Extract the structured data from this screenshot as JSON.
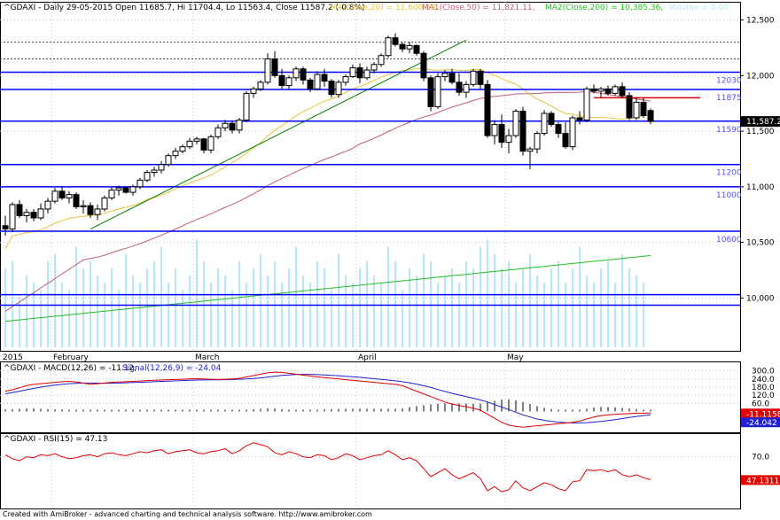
{
  "chart_data": {
    "type": "candlestick",
    "symbol": "^GDAXI",
    "header": {
      "title": "^GDAXI - Daily 29-05-2015 Open 11685.7, Hi 11704.4, Lo 11563.4, Close 11587.2 (-0.8%)",
      "ma20": "MA(Close,20) = 11,600.53,",
      "ma50": "MA1(Close,50) = 11,821.11,",
      "ma200": "MA2(Close,200) = 10,385.36,",
      "volume": "Volume = 0.00"
    },
    "colors": {
      "grid": "#c0c0c0",
      "level_line": "#0000ff",
      "level_label": "#5050ff",
      "ma20": "#e6c53a",
      "ma50": "#c06070",
      "ma200": "#22c022",
      "trendline": "#008000",
      "resistance": "#e00000",
      "volume": "#b5e8f8",
      "macd": "#e00000",
      "signal": "#2020d0",
      "rsi": "#e00000"
    },
    "price_axis": {
      "ylim": [
        9700,
        12600
      ],
      "ticks": [
        {
          "value": 12500,
          "label": "12,500"
        },
        {
          "value": 12000,
          "label": "12,000"
        },
        {
          "value": 11500,
          "label": "11,500"
        },
        {
          "value": 11000,
          "label": "11,000"
        },
        {
          "value": 10500,
          "label": "10,500"
        },
        {
          "value": 10000,
          "label": "10,000"
        }
      ],
      "current_price_label": "11,587.2"
    },
    "levels": [
      {
        "value": 12030,
        "label": "12030"
      },
      {
        "value": 11875,
        "label": "11875"
      },
      {
        "value": 11590,
        "label": "11590"
      },
      {
        "value": 11200,
        "label": "11200"
      },
      {
        "value": 11000,
        "label": "11000"
      },
      {
        "value": 10600,
        "label": "10600"
      },
      {
        "value": 10030,
        "label": ""
      },
      {
        "value": 9935,
        "label": ""
      }
    ],
    "dotted_levels": [
      12300,
      12150
    ],
    "resistance_segment": {
      "from_bar": 83,
      "to_bar": 98,
      "value": 11800
    },
    "trendline": {
      "from_bar": 12,
      "from_value": 10620,
      "to_bar": 65,
      "to_value": 12320
    },
    "month_labels": [
      {
        "bar": 0,
        "label": "2015"
      },
      {
        "bar": 7,
        "label": "February"
      },
      {
        "bar": 27,
        "label": "March"
      },
      {
        "bar": 50,
        "label": "April"
      },
      {
        "bar": 71,
        "label": "May"
      }
    ],
    "ohlc": [
      [
        10650,
        10740,
        10560,
        10620
      ],
      [
        10620,
        10860,
        10590,
        10840
      ],
      [
        10840,
        10880,
        10720,
        10740
      ],
      [
        10740,
        10800,
        10680,
        10770
      ],
      [
        10770,
        10800,
        10690,
        10720
      ],
      [
        10720,
        10850,
        10700,
        10800
      ],
      [
        10800,
        10900,
        10760,
        10870
      ],
      [
        10870,
        10990,
        10850,
        10960
      ],
      [
        10960,
        11000,
        10880,
        10900
      ],
      [
        10900,
        10960,
        10850,
        10930
      ],
      [
        10930,
        10950,
        10800,
        10820
      ],
      [
        10820,
        10880,
        10760,
        10830
      ],
      [
        10830,
        10860,
        10720,
        10750
      ],
      [
        10750,
        10840,
        10700,
        10800
      ],
      [
        10800,
        10920,
        10780,
        10900
      ],
      [
        10900,
        11000,
        10880,
        10970
      ],
      [
        10970,
        11010,
        10920,
        10990
      ],
      [
        10990,
        11000,
        10940,
        10950
      ],
      [
        10950,
        11020,
        10920,
        11000
      ],
      [
        11000,
        11080,
        10980,
        11060
      ],
      [
        11060,
        11150,
        11040,
        11130
      ],
      [
        11130,
        11180,
        11090,
        11150
      ],
      [
        11150,
        11230,
        11120,
        11200
      ],
      [
        11200,
        11300,
        11180,
        11280
      ],
      [
        11280,
        11350,
        11250,
        11320
      ],
      [
        11320,
        11380,
        11300,
        11360
      ],
      [
        11360,
        11440,
        11340,
        11410
      ],
      [
        11410,
        11450,
        11380,
        11430
      ],
      [
        11430,
        11440,
        11300,
        11330
      ],
      [
        11330,
        11470,
        11300,
        11450
      ],
      [
        11450,
        11560,
        11430,
        11530
      ],
      [
        11530,
        11600,
        11500,
        11570
      ],
      [
        11570,
        11590,
        11480,
        11510
      ],
      [
        11510,
        11620,
        11480,
        11600
      ],
      [
        11600,
        11860,
        11580,
        11840
      ],
      [
        11840,
        11900,
        11800,
        11880
      ],
      [
        11880,
        11960,
        11860,
        11940
      ],
      [
        11940,
        12200,
        11920,
        12150
      ],
      [
        12150,
        12220,
        11980,
        12000
      ],
      [
        12000,
        12060,
        11880,
        11910
      ],
      [
        11910,
        12000,
        11880,
        11980
      ],
      [
        11980,
        12080,
        11950,
        12060
      ],
      [
        12060,
        12080,
        11920,
        11960
      ],
      [
        11960,
        11980,
        11850,
        11880
      ],
      [
        11880,
        12040,
        11870,
        12010
      ],
      [
        12010,
        12060,
        11900,
        11950
      ],
      [
        11950,
        11970,
        11800,
        11830
      ],
      [
        11830,
        11960,
        11800,
        11940
      ],
      [
        11940,
        12010,
        11910,
        11990
      ],
      [
        11990,
        12100,
        11980,
        12070
      ],
      [
        12070,
        12110,
        11930,
        11980
      ],
      [
        11980,
        12080,
        11960,
        12050
      ],
      [
        12050,
        12120,
        12020,
        12100
      ],
      [
        12100,
        12200,
        12080,
        12180
      ],
      [
        12180,
        12360,
        12160,
        12340
      ],
      [
        12340,
        12380,
        12260,
        12280
      ],
      [
        12280,
        12300,
        12210,
        12240
      ],
      [
        12240,
        12300,
        12200,
        12270
      ],
      [
        12270,
        12280,
        12180,
        12200
      ],
      [
        12200,
        12220,
        11950,
        11980
      ],
      [
        11980,
        12000,
        11680,
        11720
      ],
      [
        11720,
        12020,
        11700,
        11990
      ],
      [
        11990,
        12050,
        11950,
        12020
      ],
      [
        12020,
        12060,
        11920,
        11940
      ],
      [
        11940,
        12020,
        11820,
        11850
      ],
      [
        11850,
        11950,
        11800,
        11920
      ],
      [
        11920,
        12060,
        11900,
        12040
      ],
      [
        12040,
        12060,
        11880,
        11920
      ],
      [
        11920,
        11960,
        11440,
        11460
      ],
      [
        11460,
        11600,
        11380,
        11560
      ],
      [
        11560,
        11650,
        11350,
        11400
      ],
      [
        11400,
        11520,
        11300,
        11460
      ],
      [
        11460,
        11700,
        11440,
        11680
      ],
      [
        11680,
        11720,
        11280,
        11320
      ],
      [
        11320,
        11360,
        11160,
        11340
      ],
      [
        11340,
        11500,
        11300,
        11480
      ],
      [
        11480,
        11690,
        11460,
        11660
      ],
      [
        11660,
        11680,
        11540,
        11560
      ],
      [
        11560,
        11580,
        11440,
        11480
      ],
      [
        11480,
        11580,
        11340,
        11360
      ],
      [
        11360,
        11640,
        11330,
        11620
      ],
      [
        11620,
        11680,
        11560,
        11600
      ],
      [
        11600,
        11900,
        11580,
        11880
      ],
      [
        11880,
        11920,
        11840,
        11860
      ],
      [
        11860,
        11900,
        11800,
        11880
      ],
      [
        11880,
        11910,
        11820,
        11840
      ],
      [
        11840,
        11920,
        11820,
        11900
      ],
      [
        11900,
        11940,
        11800,
        11820
      ],
      [
        11820,
        11850,
        11600,
        11620
      ],
      [
        11620,
        11800,
        11600,
        11760
      ],
      [
        11760,
        11800,
        11620,
        11640
      ],
      [
        11685.7,
        11704.4,
        11563.4,
        11587.2
      ]
    ],
    "volume_axis_max": 100,
    "volume": [
      55,
      60,
      35,
      50,
      45,
      40,
      60,
      65,
      45,
      40,
      70,
      55,
      60,
      50,
      45,
      55,
      40,
      65,
      50,
      45,
      55,
      60,
      70,
      45,
      55,
      40,
      50,
      75,
      60,
      45,
      55,
      50,
      40,
      60,
      45,
      55,
      65,
      50,
      60,
      45,
      55,
      70,
      50,
      45,
      60,
      55,
      40,
      65,
      50,
      45,
      55,
      60,
      50,
      45,
      70,
      60,
      40,
      55,
      50,
      65,
      60,
      45,
      50,
      55,
      45,
      60,
      55,
      70,
      75,
      65,
      55,
      60,
      45,
      55,
      65,
      50,
      45,
      55,
      60,
      45,
      55,
      70,
      50,
      45,
      55,
      60,
      45,
      65,
      55,
      50,
      45,
      0
    ],
    "macd": {
      "label": "^GDAXI - MACD(12,26) = -11.12,",
      "signal_label": "Signal(12,26,9) = -24.04",
      "ylim": [
        -140,
        330
      ],
      "ticks": [
        {
          "value": 300,
          "label": "300.0"
        },
        {
          "value": 240,
          "label": "240.0"
        },
        {
          "value": 180,
          "label": "180.0"
        },
        {
          "value": 120,
          "label": "120.0"
        },
        {
          "value": 60,
          "label": "60.0"
        }
      ],
      "macd_value_label": "-11.1158",
      "signal_value_label": "-24.042",
      "macd_values": [
        150,
        160,
        175,
        190,
        200,
        205,
        210,
        215,
        220,
        222,
        218,
        210,
        200,
        205,
        210,
        215,
        218,
        220,
        222,
        225,
        228,
        230,
        232,
        235,
        236,
        238,
        240,
        242,
        240,
        238,
        236,
        238,
        240,
        245,
        255,
        265,
        275,
        285,
        290,
        288,
        282,
        275,
        268,
        262,
        255,
        250,
        245,
        240,
        235,
        230,
        225,
        220,
        215,
        210,
        205,
        200,
        190,
        170,
        150,
        130,
        110,
        90,
        70,
        55,
        45,
        35,
        25,
        10,
        -20,
        -50,
        -80,
        -100,
        -110,
        -115,
        -110,
        -105,
        -100,
        -95,
        -90,
        -85,
        -80,
        -70,
        -55,
        -40,
        -30,
        -25,
        -20,
        -18,
        -15,
        -13,
        -12,
        -11.12
      ],
      "signal_values": [
        130,
        140,
        150,
        160,
        170,
        180,
        188,
        195,
        200,
        205,
        208,
        210,
        210,
        209,
        208,
        209,
        210,
        212,
        214,
        216,
        218,
        220,
        222,
        224,
        226,
        228,
        230,
        232,
        233,
        234,
        234,
        235,
        236,
        238,
        240,
        244,
        248,
        254,
        260,
        266,
        270,
        273,
        274,
        274,
        272,
        270,
        267,
        264,
        260,
        256,
        252,
        247,
        242,
        237,
        232,
        226,
        220,
        212,
        202,
        190,
        177,
        162,
        148,
        134,
        122,
        110,
        98,
        85,
        70,
        52,
        33,
        15,
        -5,
        -25,
        -40,
        -55,
        -65,
        -72,
        -78,
        -82,
        -84,
        -84,
        -82,
        -78,
        -73,
        -67,
        -60,
        -52,
        -44,
        -36,
        -30,
        -24.04
      ]
    },
    "rsi": {
      "label": "^GDAXI - RSI(15) = 47.13",
      "ylim": [
        20,
        90
      ],
      "ticks": [
        {
          "value": 70,
          "label": "70.0"
        }
      ],
      "value_label": "47.1311",
      "values": [
        72,
        68,
        66,
        70,
        69,
        72,
        71,
        73,
        70,
        68,
        69,
        71,
        72,
        70,
        73,
        74,
        72,
        71,
        73,
        75,
        74,
        76,
        77,
        73,
        75,
        76,
        77,
        74,
        73,
        75,
        76,
        78,
        73,
        76,
        81,
        84,
        82,
        80,
        74,
        72,
        75,
        73,
        70,
        69,
        72,
        71,
        67,
        69,
        73,
        71,
        67,
        69,
        71,
        72,
        76,
        72,
        67,
        69,
        66,
        58,
        50,
        54,
        58,
        52,
        48,
        51,
        54,
        48,
        36,
        40,
        35,
        37,
        46,
        39,
        36,
        40,
        44,
        42,
        38,
        36,
        45,
        46,
        57,
        56,
        57,
        55,
        57,
        52,
        50,
        52,
        49,
        47.13
      ]
    }
  }
}
